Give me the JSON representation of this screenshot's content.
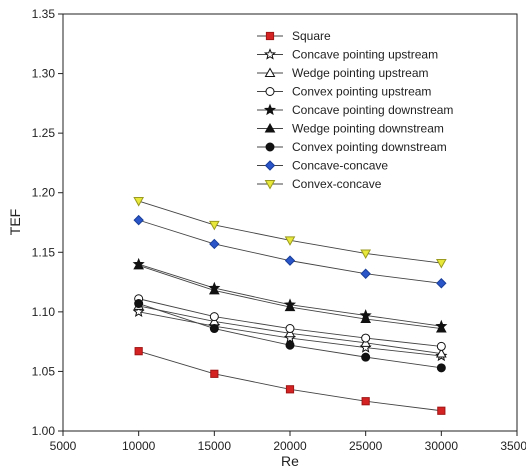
{
  "chart_data": {
    "type": "line",
    "xlabel": "Re",
    "ylabel": "TEF",
    "xlim": [
      5000,
      35000
    ],
    "ylim": [
      1.0,
      1.35
    ],
    "xticks": [
      "5000",
      "10000",
      "15000",
      "20000",
      "25000",
      "30000",
      "35000"
    ],
    "yticks": [
      "1.00",
      "1.05",
      "1.10",
      "1.15",
      "1.20",
      "1.25",
      "1.30",
      "1.35"
    ],
    "x": [
      10000,
      15000,
      20000,
      25000,
      30000
    ],
    "grid": false,
    "legend_position": "top-right",
    "series": [
      {
        "name": "Square",
        "marker": "square-filled",
        "color": "#d42222",
        "values": [
          1.067,
          1.048,
          1.035,
          1.025,
          1.017
        ]
      },
      {
        "name": "Concave pointing upstream",
        "marker": "star-open",
        "color": "#222222",
        "values": [
          1.1,
          1.088,
          1.078,
          1.07,
          1.063
        ]
      },
      {
        "name": "Wedge pointing upstream",
        "marker": "triangle-open",
        "color": "#222222",
        "values": [
          1.105,
          1.092,
          1.082,
          1.074,
          1.065
        ]
      },
      {
        "name": "Convex pointing upstream",
        "marker": "circle-open",
        "color": "#222222",
        "values": [
          1.111,
          1.096,
          1.086,
          1.078,
          1.071
        ]
      },
      {
        "name": "Concave pointing downstream",
        "marker": "star-filled",
        "color": "#111111",
        "values": [
          1.14,
          1.12,
          1.106,
          1.097,
          1.088
        ]
      },
      {
        "name": "Wedge pointing downstream",
        "marker": "triangle-filled",
        "color": "#111111",
        "values": [
          1.139,
          1.118,
          1.104,
          1.094,
          1.086
        ]
      },
      {
        "name": "Convex pointing downstream",
        "marker": "circle-filled",
        "color": "#111111",
        "values": [
          1.107,
          1.086,
          1.072,
          1.062,
          1.053
        ]
      },
      {
        "name": "Concave-concave",
        "marker": "diamond-filled",
        "color": "#2a55c8",
        "values": [
          1.177,
          1.157,
          1.143,
          1.132,
          1.124
        ]
      },
      {
        "name": "Convex-concave",
        "marker": "triangle-down-filled",
        "color": "#e8e83a",
        "values": [
          1.193,
          1.173,
          1.16,
          1.149,
          1.141
        ]
      }
    ]
  }
}
